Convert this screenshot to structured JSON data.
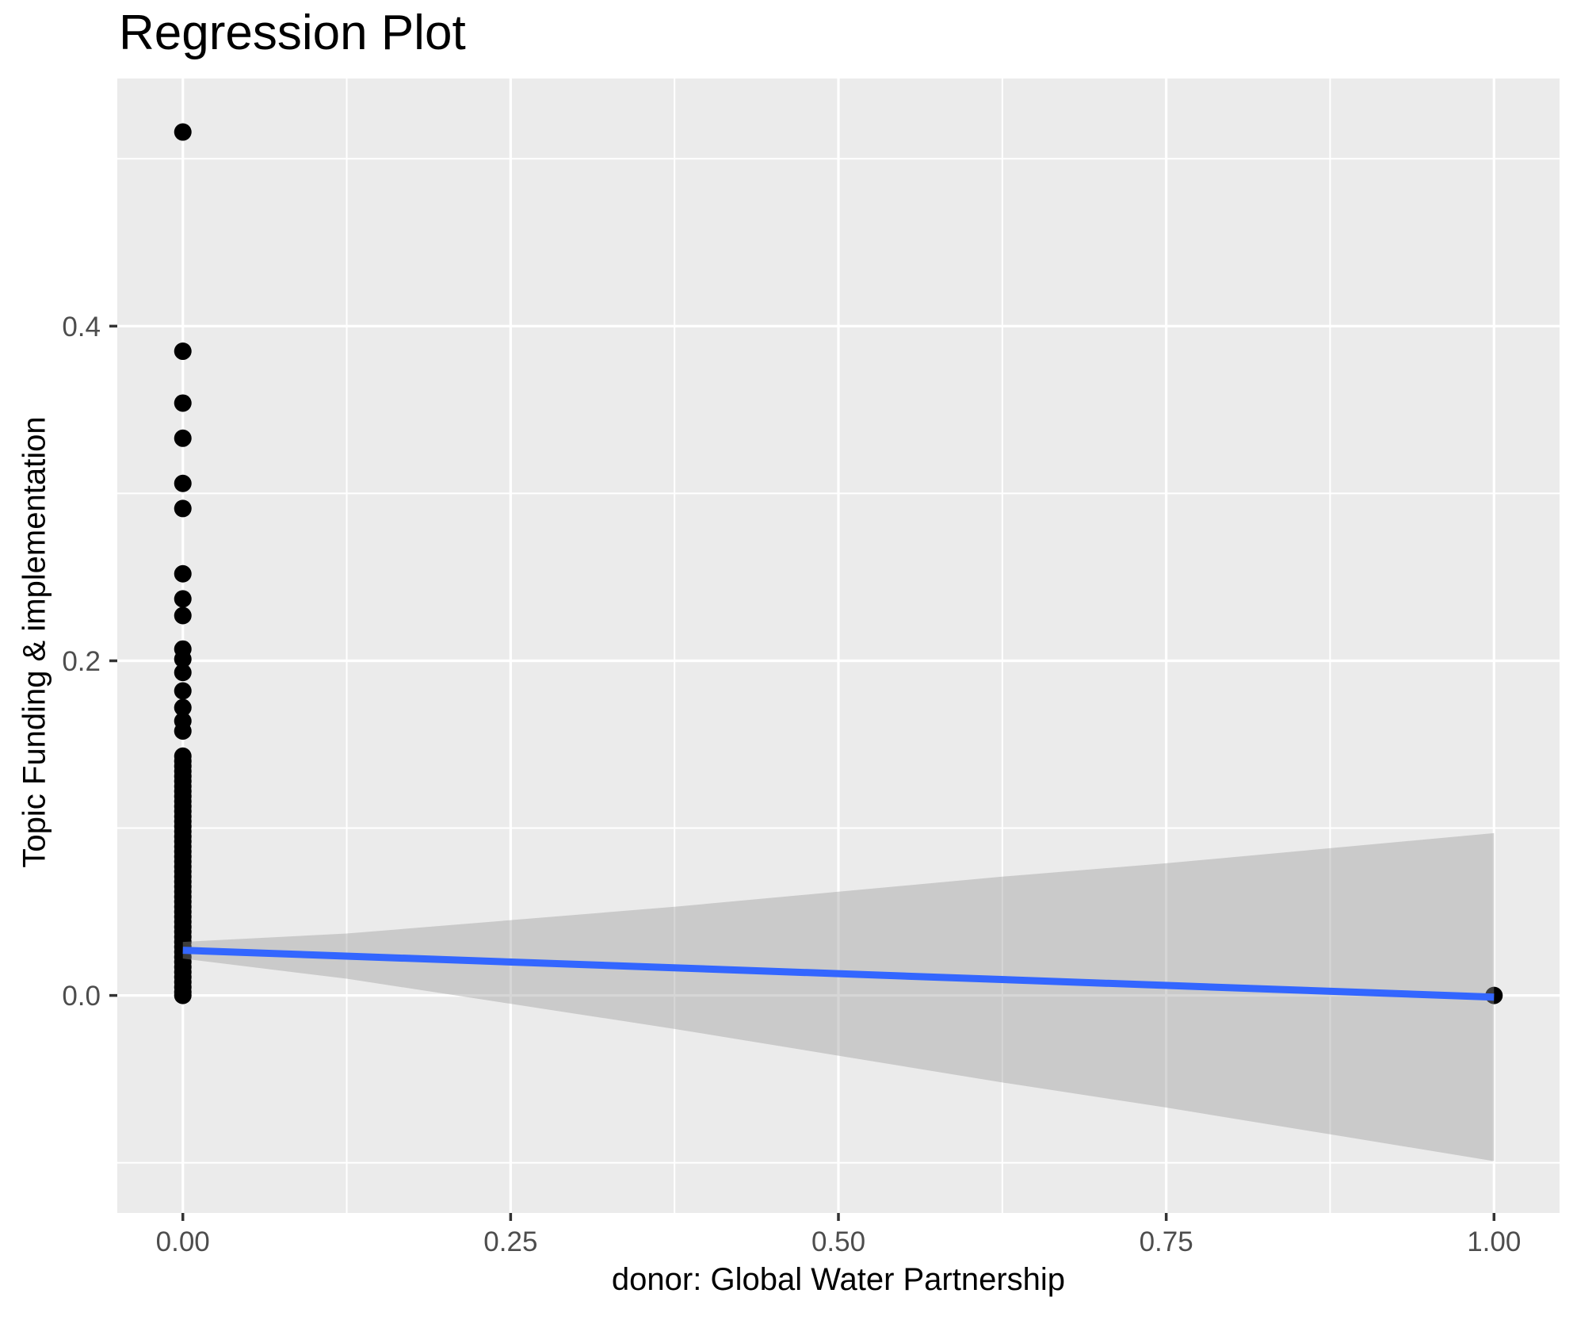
{
  "title": "Regression Plot",
  "chart_data": {
    "type": "scatter",
    "title": "Regression Plot",
    "xlabel": "donor: Global Water Partnership",
    "ylabel": "Topic Funding & implementation",
    "legend": false,
    "grid": true,
    "xlim": [
      -0.05,
      1.05
    ],
    "ylim": [
      -0.13,
      0.548
    ],
    "x_ticks": {
      "major": [
        0,
        0.25,
        0.5,
        0.75,
        1
      ],
      "minor": [
        0.125,
        0.375,
        0.625,
        0.875
      ],
      "labels": [
        "0.00",
        "0.25",
        "0.50",
        "0.75",
        "1.00"
      ]
    },
    "y_ticks": {
      "major": [
        0,
        0.2,
        0.4
      ],
      "minor": [
        -0.1,
        0.1,
        0.3,
        0.5
      ],
      "labels": [
        "0.0",
        "0.2",
        "0.4"
      ]
    },
    "points": [
      [
        0,
        0.516
      ],
      [
        0,
        0.385
      ],
      [
        0,
        0.354
      ],
      [
        0,
        0.333
      ],
      [
        0,
        0.306
      ],
      [
        0,
        0.291
      ],
      [
        0,
        0.252
      ],
      [
        0,
        0.237
      ],
      [
        0,
        0.227
      ],
      [
        0,
        0.207
      ],
      [
        0,
        0.201
      ],
      [
        0,
        0.193
      ],
      [
        0,
        0.182
      ],
      [
        0,
        0.172
      ],
      [
        0,
        0.164
      ],
      [
        0,
        0.158
      ],
      [
        0,
        0.143
      ],
      [
        0,
        0.14
      ],
      [
        0,
        0.137
      ],
      [
        0,
        0.134
      ],
      [
        0,
        0.131
      ],
      [
        0,
        0.128
      ],
      [
        0,
        0.125
      ],
      [
        0,
        0.122
      ],
      [
        0,
        0.119
      ],
      [
        0,
        0.116
      ],
      [
        0,
        0.113
      ],
      [
        0,
        0.11
      ],
      [
        0,
        0.107
      ],
      [
        0,
        0.104
      ],
      [
        0,
        0.101
      ],
      [
        0,
        0.098
      ],
      [
        0,
        0.095
      ],
      [
        0,
        0.092
      ],
      [
        0,
        0.089
      ],
      [
        0,
        0.086
      ],
      [
        0,
        0.083
      ],
      [
        0,
        0.08
      ],
      [
        0,
        0.077
      ],
      [
        0,
        0.074
      ],
      [
        0,
        0.071
      ],
      [
        0,
        0.068
      ],
      [
        0,
        0.065
      ],
      [
        0,
        0.062
      ],
      [
        0,
        0.059
      ],
      [
        0,
        0.056
      ],
      [
        0,
        0.053
      ],
      [
        0,
        0.05
      ],
      [
        0,
        0.047
      ],
      [
        0,
        0.044
      ],
      [
        0,
        0.041
      ],
      [
        0,
        0.038
      ],
      [
        0,
        0.035
      ],
      [
        0,
        0.032
      ],
      [
        0,
        0.029
      ],
      [
        0,
        0.026
      ],
      [
        0,
        0.023
      ],
      [
        0,
        0.02
      ],
      [
        0,
        0.017
      ],
      [
        0,
        0.014
      ],
      [
        0,
        0.011
      ],
      [
        0,
        0.008
      ],
      [
        0,
        0.005
      ],
      [
        0,
        0.002
      ],
      [
        0,
        0.0
      ],
      [
        1,
        0.0
      ]
    ],
    "regression_line": {
      "x": [
        0,
        1
      ],
      "y": [
        0.027,
        -0.001
      ]
    },
    "ci_band": {
      "x": [
        0,
        0.125,
        0.25,
        0.375,
        0.5,
        0.625,
        0.75,
        0.875,
        1
      ],
      "upper": [
        0.032,
        0.037,
        0.045,
        0.053,
        0.062,
        0.071,
        0.079,
        0.088,
        0.097
      ],
      "lower": [
        0.022,
        0.01,
        -0.005,
        -0.02,
        -0.036,
        -0.052,
        -0.067,
        -0.083,
        -0.099
      ]
    },
    "colors": {
      "panel_bg": "#EBEBEB",
      "grid": "#FFFFFF",
      "point": "#000000",
      "line": "#3366FF",
      "ribbon": "rgba(153,153,153,0.40)",
      "tick": "#333333",
      "tick_label": "#4D4D4D",
      "text": "#000000"
    }
  }
}
